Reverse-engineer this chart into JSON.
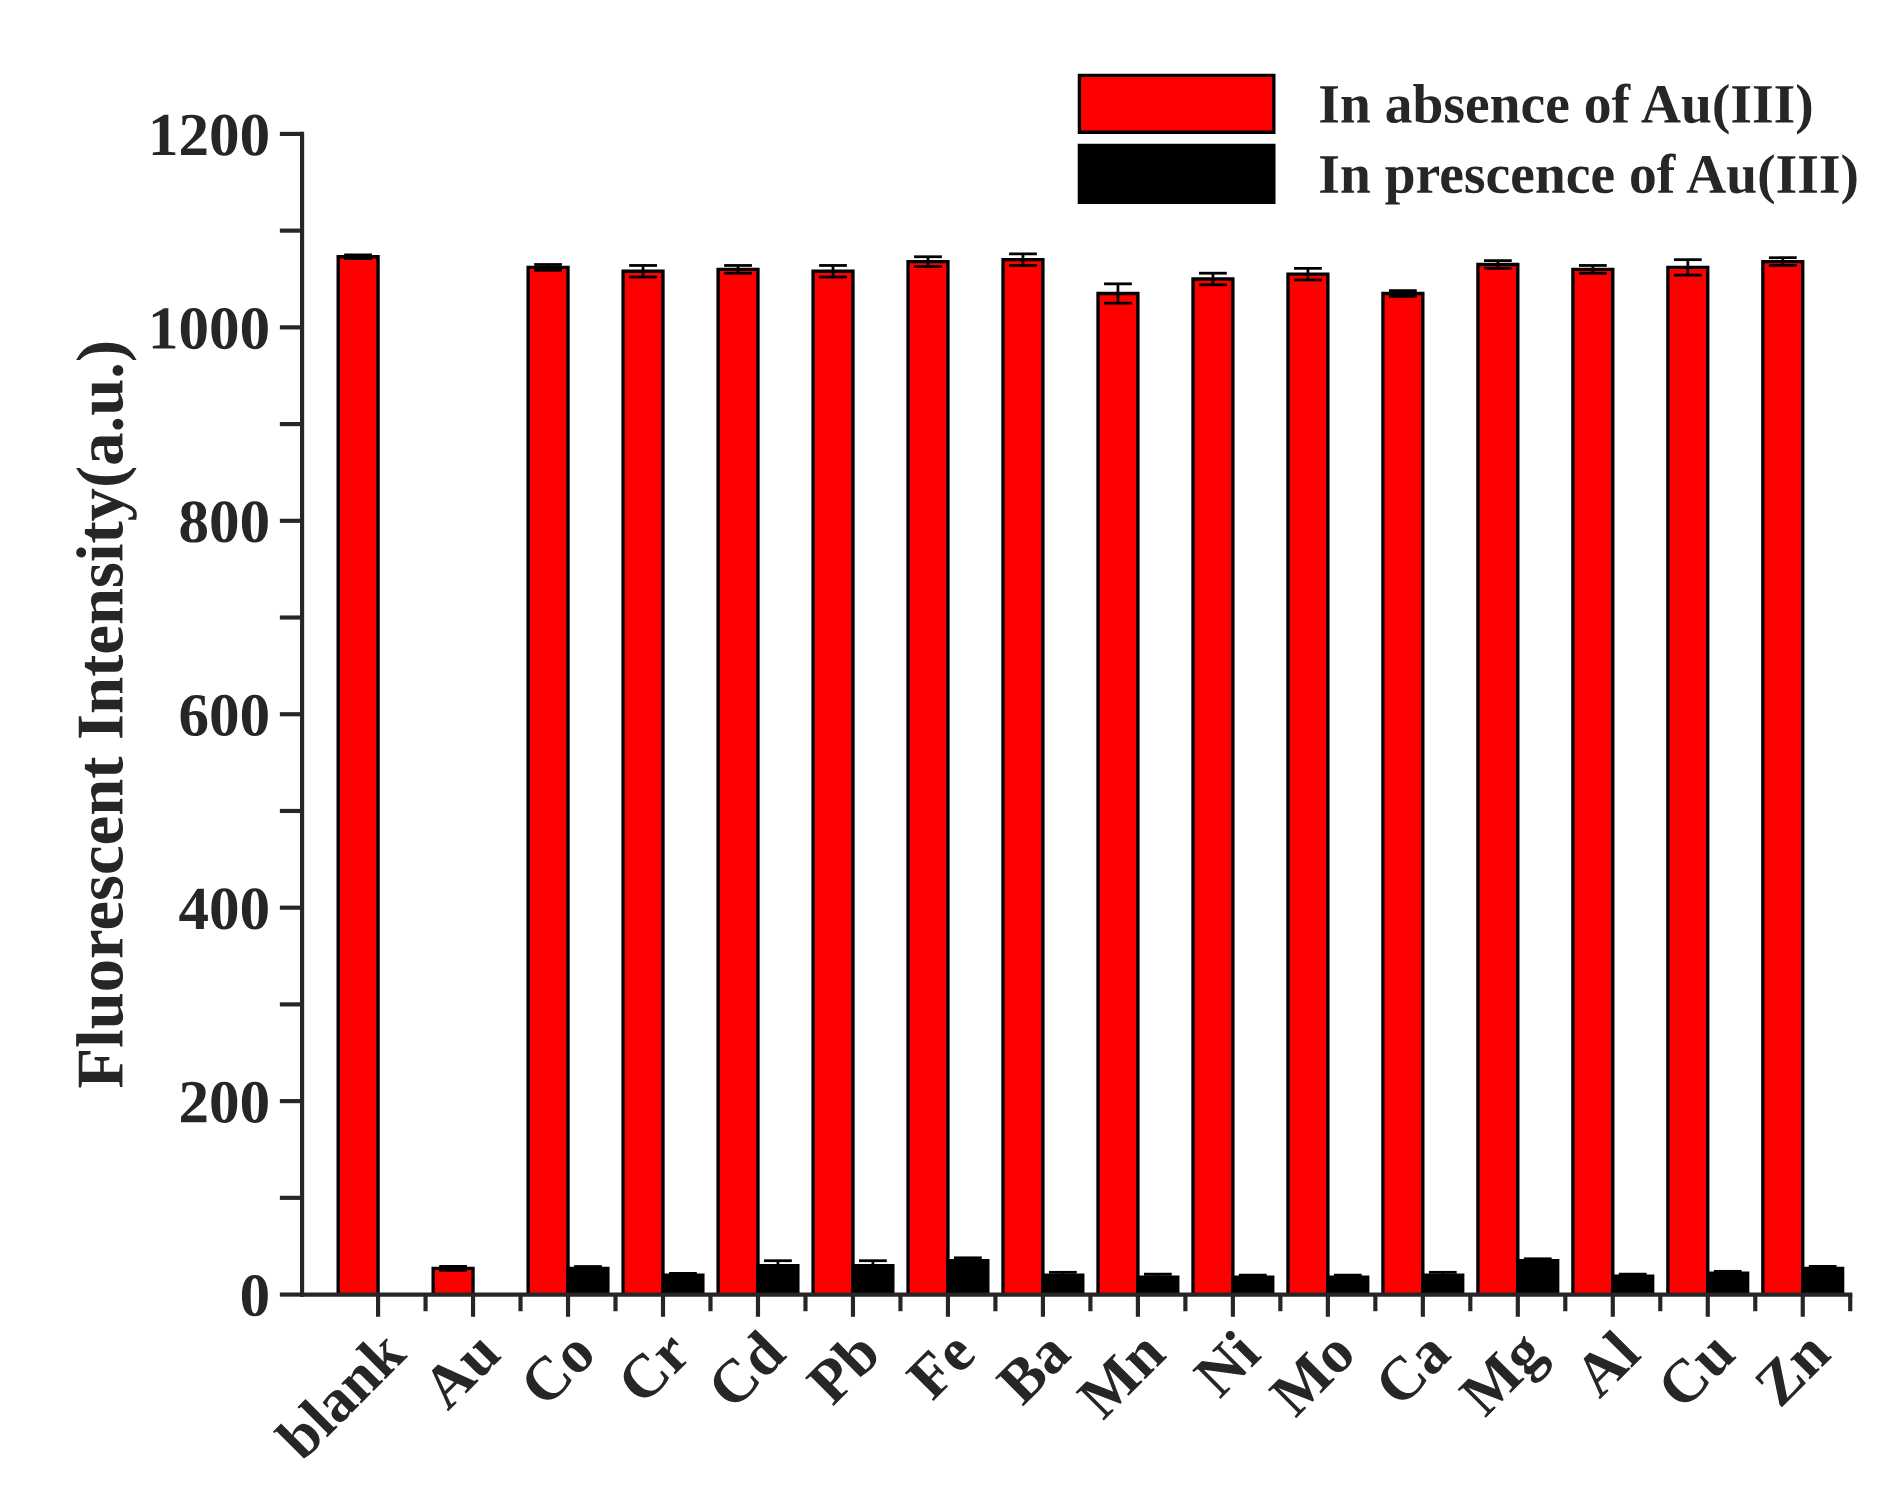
{
  "chart_data": {
    "type": "bar",
    "ylabel": "Fluorescent Intensity(a.u.)",
    "categories": [
      "blank",
      "Au",
      "Co",
      "Cr",
      "Cd",
      "Pb",
      "Fe",
      "Ba",
      "Mn",
      "Ni",
      "Mo",
      "Ca",
      "Mg",
      "Al",
      "Cu",
      "Zn"
    ],
    "series": [
      {
        "name": "In absence of Au(III)",
        "color": "#ff0000",
        "values": [
          1073,
          27,
          1062,
          1058,
          1060,
          1058,
          1068,
          1070,
          1035,
          1050,
          1055,
          1035,
          1065,
          1060,
          1062,
          1068
        ],
        "errors": [
          2,
          2,
          3,
          6,
          4,
          6,
          5,
          6,
          10,
          6,
          6,
          3,
          4,
          4,
          8,
          4
        ]
      },
      {
        "name": "In prescence of Au(III)",
        "color": "#000000",
        "values": [
          null,
          null,
          27,
          20,
          30,
          30,
          35,
          20,
          18,
          18,
          18,
          20,
          35,
          19,
          22,
          27
        ],
        "errors": [
          null,
          null,
          2,
          2,
          5,
          5,
          3,
          3,
          3,
          2,
          2,
          3,
          2,
          2,
          2,
          2
        ]
      }
    ],
    "ylim": [
      0,
      1200
    ],
    "yticks": [
      0,
      {
        "value": 100,
        "label": null
      },
      200,
      {
        "value": 300,
        "label": null
      },
      400,
      {
        "value": 500,
        "label": null
      },
      600,
      {
        "value": 700,
        "label": null
      },
      800,
      {
        "value": 900,
        "label": null
      },
      1000,
      {
        "value": 1100,
        "label": null
      },
      1200
    ],
    "grid": false,
    "legend": "top right"
  }
}
